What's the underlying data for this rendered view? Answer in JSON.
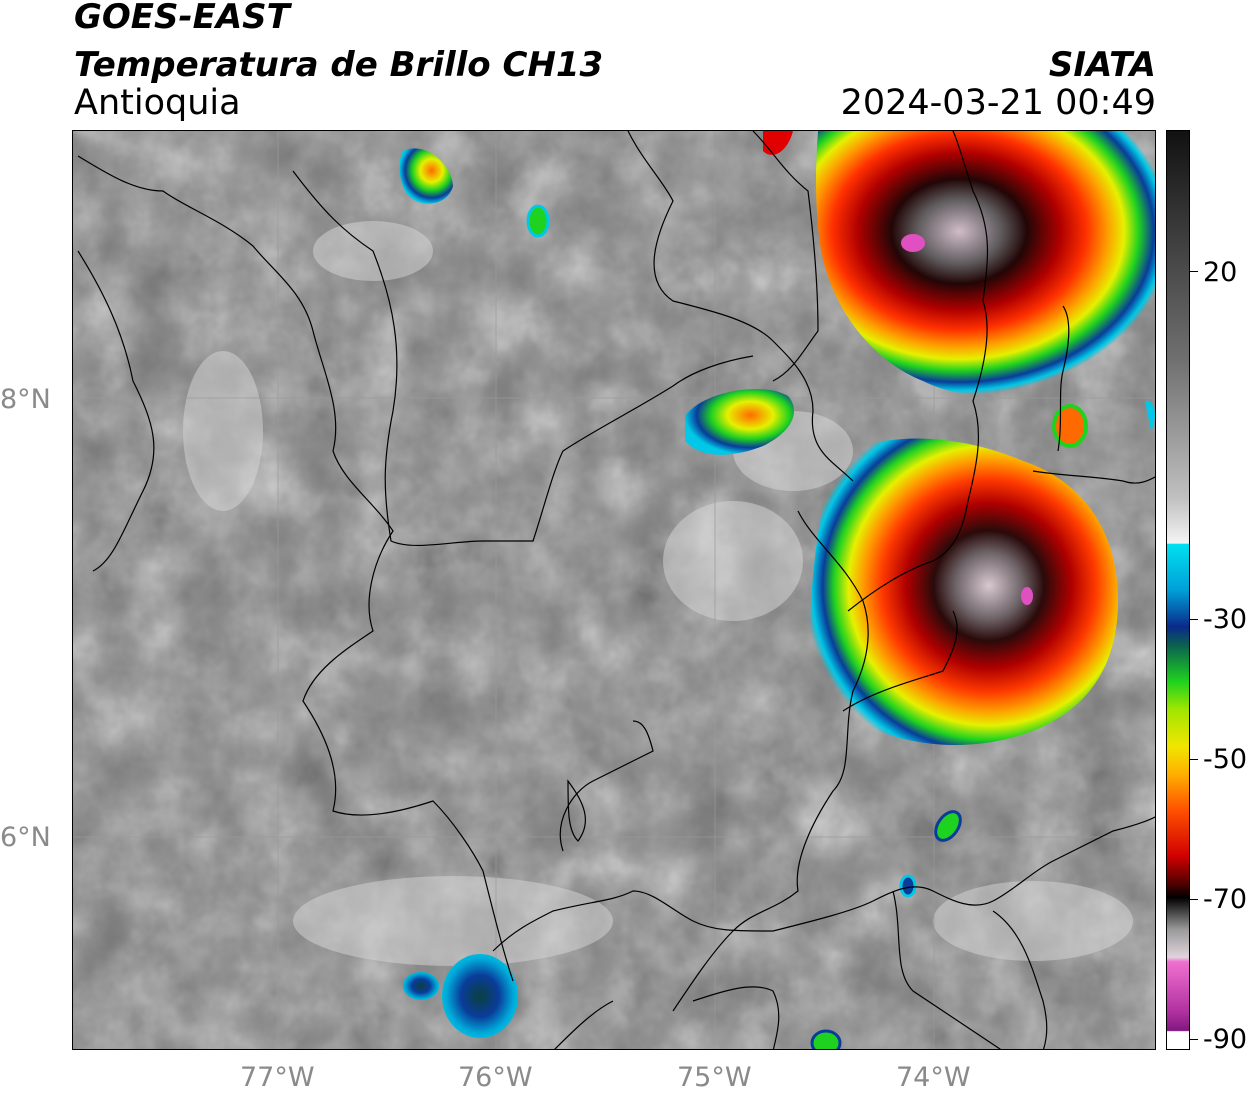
{
  "header": {
    "satellite": "GOES-EAST",
    "product": "Temperatura de Brillo CH13",
    "region": "Antioquia",
    "agency": "SIATA",
    "datetime": "2024-03-21 00:49"
  },
  "axes": {
    "lat_labels": [
      "8°N",
      "6°N"
    ],
    "lon_labels": [
      "77°W",
      "76°W",
      "75°W",
      "74°W"
    ]
  },
  "colorbar": {
    "tick_labels": [
      "20",
      "-30",
      "-50",
      "-70",
      "-90"
    ],
    "colors": {
      "warm_gray": "#7a7a7a",
      "cyan": "#00c8e6",
      "blue": "#0a3c9a",
      "green": "#1fd21f",
      "yellow": "#f0e600",
      "orange": "#ff8a00",
      "red": "#e10000",
      "dark_red": "#5a0000",
      "black": "#111111",
      "magenta": "#e050c0",
      "purple": "#8a1a8a"
    }
  }
}
